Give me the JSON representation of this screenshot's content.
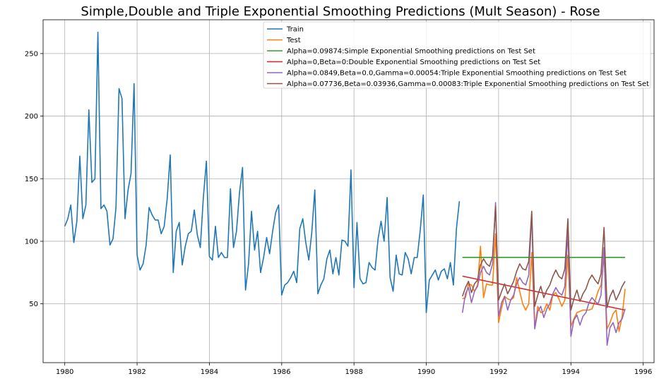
{
  "chart_data": {
    "type": "line",
    "title": "Simple,Double and Triple Exponential Smoothing Predictions (Mult Season) - Rose",
    "xlabel": "",
    "ylabel": "",
    "xlim": [
      1979.4,
      1996.3
    ],
    "ylim": [
      3,
      277
    ],
    "xticks": [
      1980,
      1982,
      1984,
      1986,
      1988,
      1990,
      1992,
      1994,
      1996
    ],
    "yticks": [
      50,
      100,
      150,
      200,
      250
    ],
    "grid": true,
    "legend_position": "top-right",
    "series": [
      {
        "name": "Train",
        "color": "#1f77b4",
        "x_start": 1980.0,
        "x_step": 0.08333,
        "values": [
          112,
          118,
          129,
          99,
          116,
          168,
          118,
          129,
          205,
          147,
          150,
          267,
          126,
          129,
          124,
          97,
          102,
          127,
          222,
          214,
          118,
          141,
          154,
          226,
          89,
          77,
          82,
          97,
          127,
          121,
          117,
          117,
          106,
          112,
          134,
          169,
          75,
          108,
          115,
          81,
          96,
          106,
          108,
          125,
          105,
          95,
          135,
          164,
          88,
          85,
          112,
          87,
          91,
          87,
          87,
          142,
          95,
          108,
          139,
          159,
          61,
          82,
          124,
          93,
          108,
          75,
          87,
          103,
          90,
          108,
          123,
          129,
          57,
          65,
          67,
          71,
          76,
          67,
          110,
          118,
          99,
          85,
          107,
          141,
          58,
          65,
          70,
          86,
          93,
          74,
          87,
          73,
          101,
          100,
          96,
          157,
          63,
          115,
          70,
          66,
          67,
          83,
          79,
          77,
          102,
          116,
          100,
          135,
          71,
          60,
          89,
          74,
          73,
          91,
          86,
          74,
          87,
          87,
          109,
          137,
          43,
          69,
          73,
          77,
          69,
          76,
          78,
          70,
          83,
          65,
          110,
          132
        ]
      },
      {
        "name": "Test",
        "color": "#ff7f0e",
        "x_start": 1991.0,
        "x_step": 0.08333,
        "values": [
          54,
          55,
          66,
          65,
          60,
          65,
          96,
          55,
          66,
          65,
          65,
          106,
          35,
          47,
          56,
          54,
          53,
          55,
          71,
          60,
          50,
          45,
          50,
          91,
          31,
          48,
          43,
          44,
          50,
          45,
          57,
          59,
          54,
          48,
          53,
          89,
          32,
          38,
          43,
          44,
          45,
          45,
          45,
          46,
          52,
          60,
          65,
          88,
          30,
          35,
          42,
          45,
          28,
          40,
          62
        ]
      },
      {
        "name": "Alpha=0.09874:Simple Exponential Smoothing predictions on Test Set",
        "color": "#2ca02c",
        "x": [
          1991.0,
          1995.5
        ],
        "values": [
          87.1,
          87.1
        ]
      },
      {
        "name": "Alpha=0,Beta=0:Double Exponential Smoothing predictions on Test Set",
        "color": "#d62728",
        "x": [
          1991.0,
          1995.5
        ],
        "values": [
          72.1,
          45.0
        ]
      },
      {
        "name": "Alpha=0.0849,Beta=0.0,Gamma=0.00054:Triple Exponential Smoothing predictions on Test Set",
        "color": "#9467bd",
        "x_start": 1991.0,
        "x_step": 0.08333,
        "values": [
          43,
          58,
          63,
          51,
          60,
          64,
          75,
          80,
          75,
          73,
          82,
          131,
          40,
          51,
          56,
          45,
          53,
          57,
          66,
          71,
          67,
          65,
          73,
          122,
          30,
          44,
          48,
          39,
          46,
          50,
          58,
          63,
          59,
          57,
          64,
          108,
          24,
          37,
          41,
          33,
          40,
          43,
          51,
          55,
          52,
          50,
          57,
          95,
          17,
          31,
          35,
          27,
          35,
          38,
          46
        ]
      },
      {
        "name": "Alpha=0.07736,Beta=0.03936,Gamma=0.00083:Triple Exponential Smoothing predictions on Test Set",
        "color": "#8c564b",
        "x_start": 1991.0,
        "x_step": 0.08333,
        "values": [
          56,
          63,
          68,
          59,
          66,
          69,
          81,
          86,
          82,
          80,
          88,
          128,
          53,
          60,
          66,
          58,
          63,
          68,
          76,
          82,
          78,
          77,
          84,
          124,
          48,
          57,
          64,
          55,
          61,
          65,
          72,
          77,
          72,
          70,
          78,
          118,
          45,
          54,
          61,
          52,
          58,
          62,
          69,
          73,
          69,
          66,
          74,
          111,
          47,
          56,
          61,
          53,
          58,
          64,
          68
        ]
      }
    ]
  }
}
